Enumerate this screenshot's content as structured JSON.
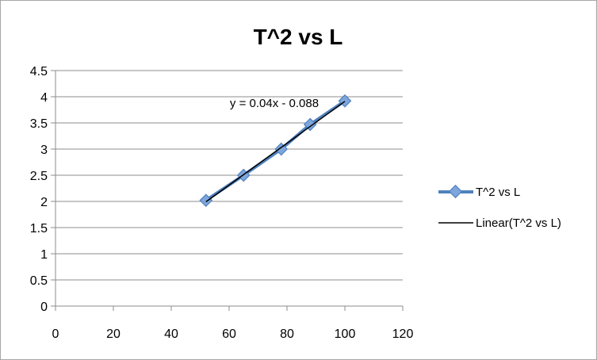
{
  "chart_data": {
    "type": "scatter",
    "title": "T^2 vs L",
    "xlabel": "",
    "ylabel": "",
    "xlim": [
      0,
      120
    ],
    "ylim": [
      0,
      4.5
    ],
    "x_ticks": [
      "0",
      "20",
      "40",
      "60",
      "80",
      "100",
      "120"
    ],
    "y_ticks": [
      "0",
      "0.5",
      "1",
      "1.5",
      "2",
      "2.5",
      "3",
      "3.5",
      "4",
      "4.5"
    ],
    "grid": "horizontal",
    "legend_position": "right",
    "series": [
      {
        "name": "T^2 vs L",
        "x": [
          52,
          65,
          78,
          88,
          100
        ],
        "y": [
          2.02,
          2.5,
          3.0,
          3.47,
          3.92
        ],
        "color": "#4f81bd",
        "marker": "diamond",
        "connected": true
      }
    ],
    "trendline": {
      "name": "Linear(T^2 vs L)",
      "slope": 0.04,
      "intercept": -0.088,
      "x_range": [
        52,
        100
      ],
      "color": "#000000",
      "equation_label": "y = 0.04x - 0.088"
    }
  }
}
